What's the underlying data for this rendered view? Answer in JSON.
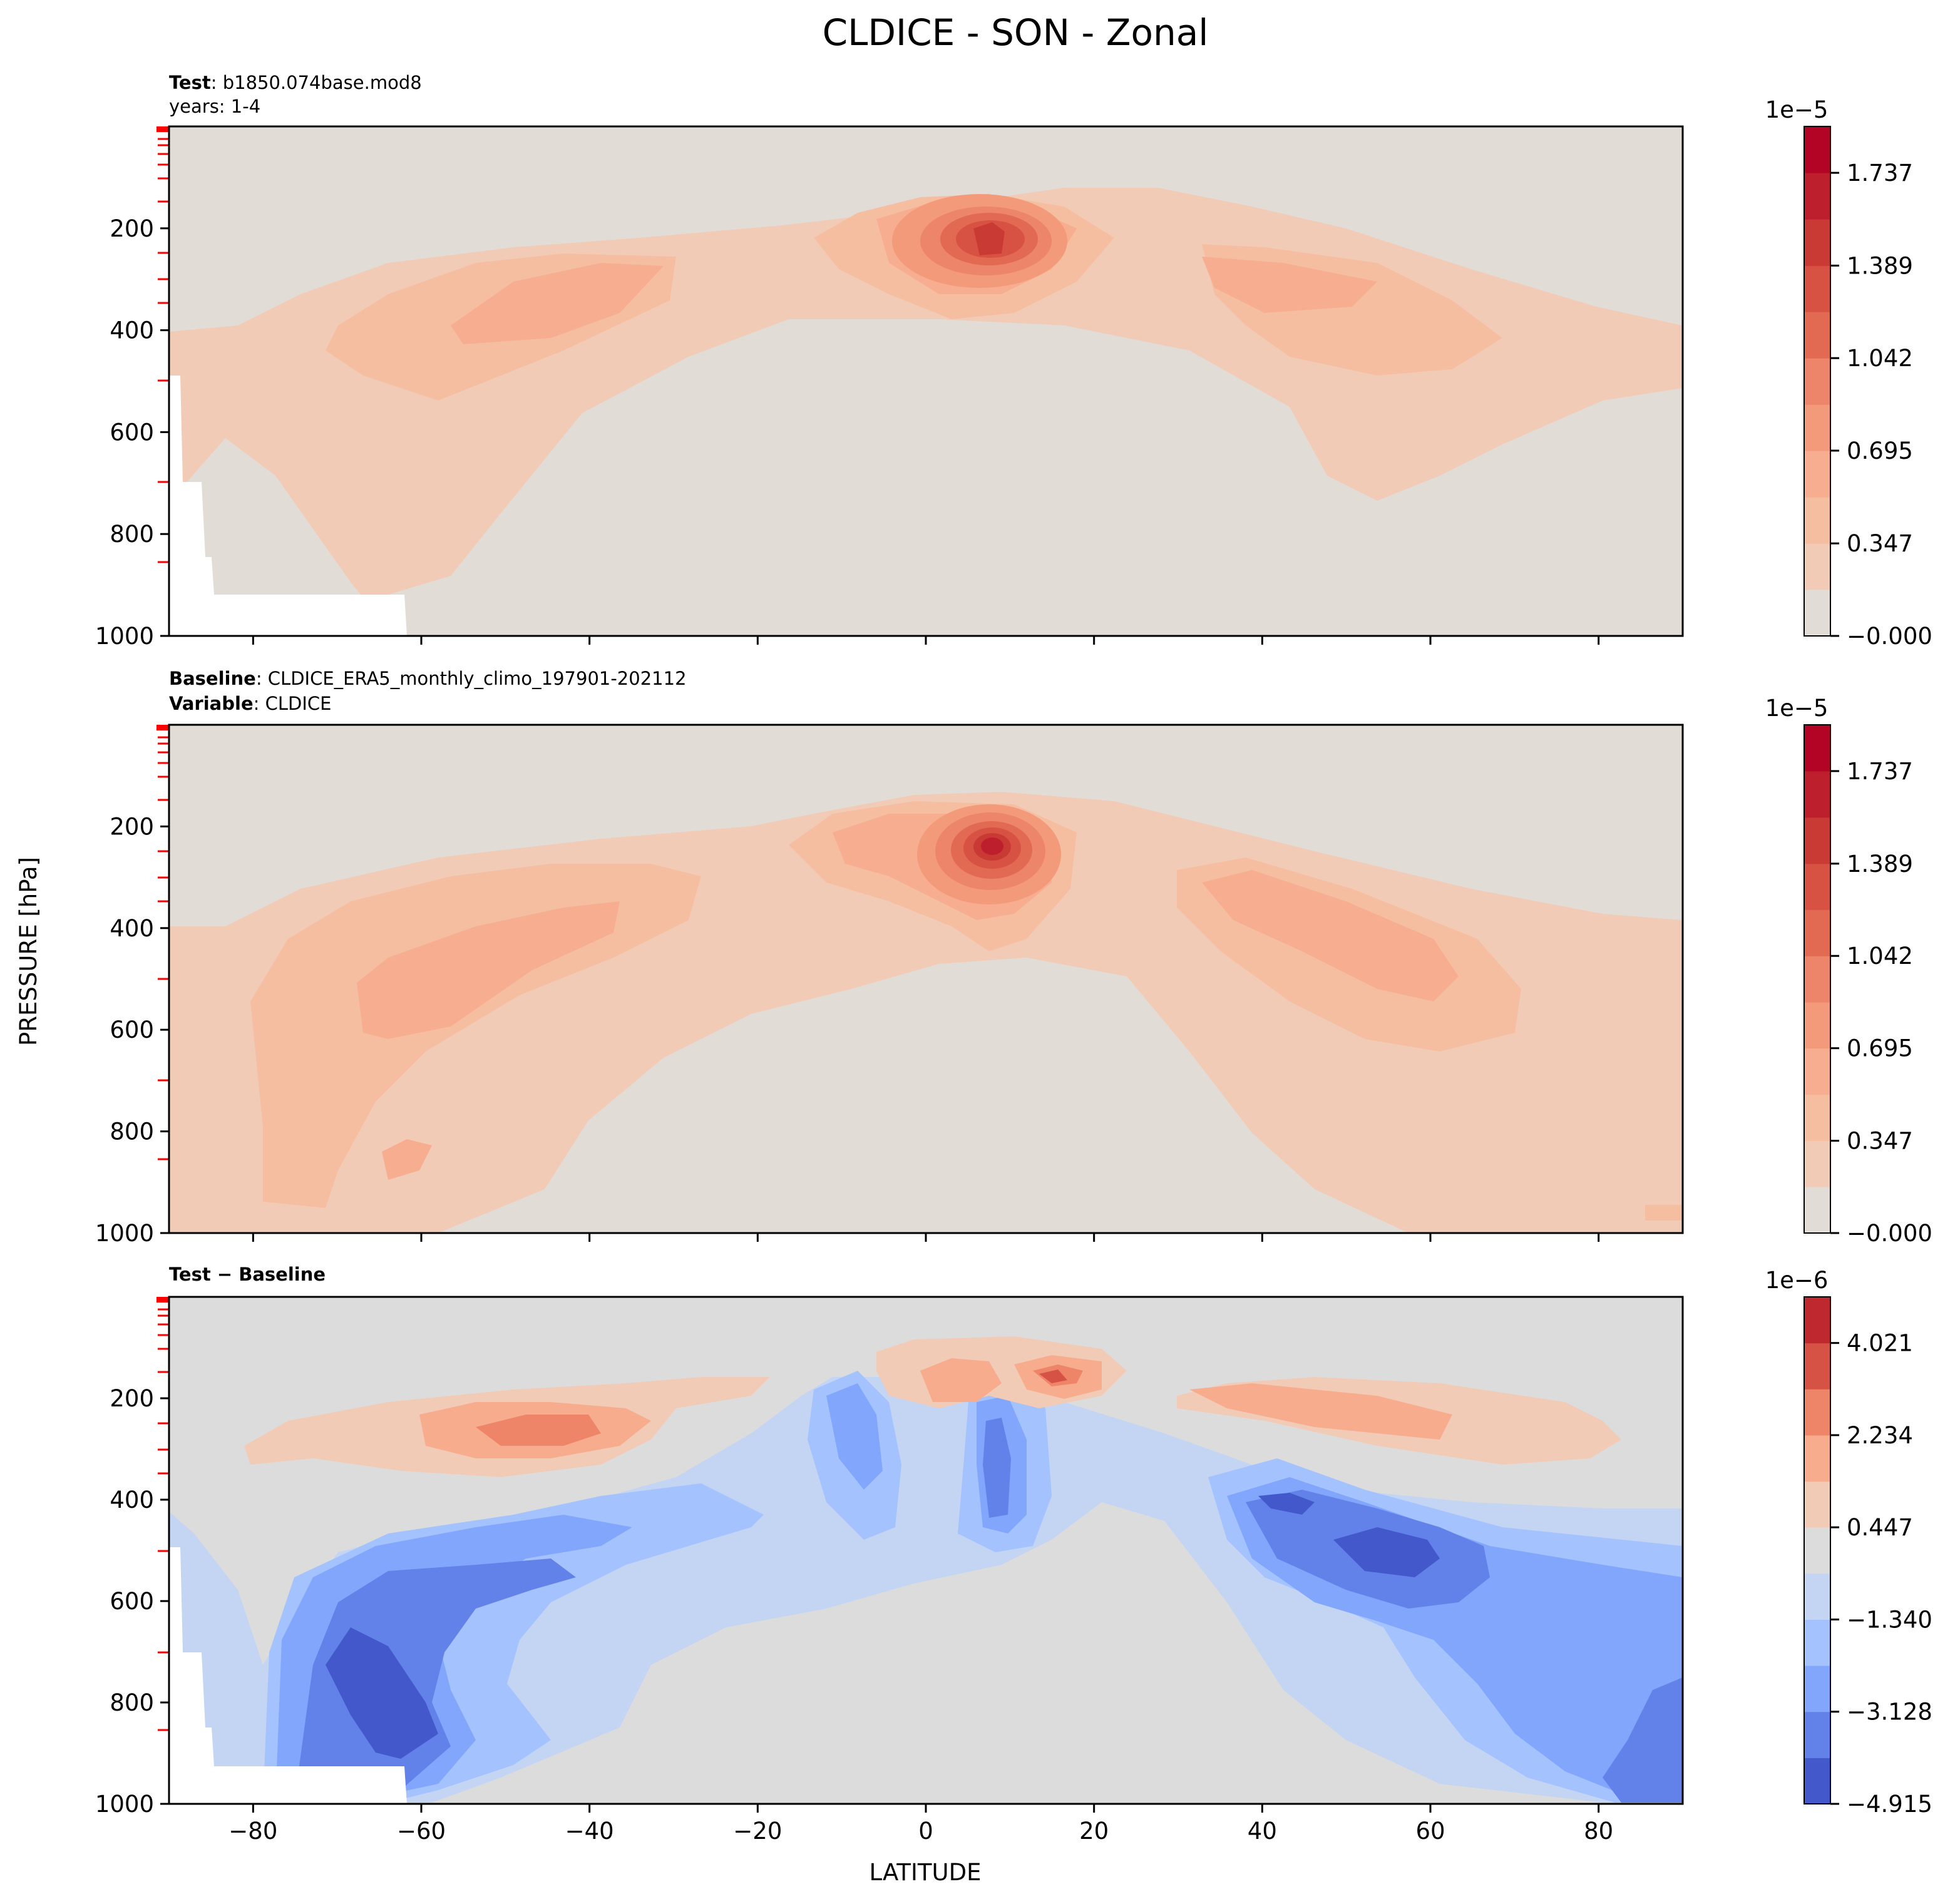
{
  "figure": {
    "title": "CLDICE - SON - Zonal",
    "ylabel": "PRESSURE [hPa]",
    "xlabel": "LATITUDE"
  },
  "colors": {
    "background": "#e2dcd7",
    "diff_background": "#dcdcdc",
    "pressure_level_tick": "#ff0000",
    "missing": "#ffffff"
  },
  "chart_data": [
    {
      "type": "heatmap",
      "panel": "test",
      "header": [
        {
          "bold": "Test",
          "text": ": b1850.074base.mod8"
        },
        {
          "bold": "",
          "text": "years: 1-4"
        }
      ],
      "xlim": [
        -90,
        90
      ],
      "ylim": [
        1000,
        0
      ],
      "x_ticks": [
        -80,
        -60,
        -40,
        -20,
        0,
        20,
        40,
        60,
        80
      ],
      "x_tick_labels_visible": false,
      "y_ticks": [
        200,
        400,
        600,
        800,
        1000
      ],
      "y_tick_labels": [
        "200",
        "400",
        "600",
        "800",
        "1000"
      ],
      "colorbar": {
        "exponent_label": "1e−5",
        "levels": [
          -0.0,
          0.174,
          0.347,
          0.521,
          0.695,
          0.868,
          1.042,
          1.216,
          1.389,
          1.563,
          1.737,
          1.911
        ],
        "tick_values": [
          -0.0,
          0.347,
          0.695,
          1.042,
          1.389,
          1.737
        ],
        "tick_labels": [
          "−0.000",
          "0.347",
          "0.695",
          "1.042",
          "1.389",
          "1.737"
        ],
        "colors": [
          "#e2dcd7",
          "#f2cbb7",
          "#f6bea1",
          "#f7ad90",
          "#f39a7b",
          "#ec8569",
          "#e26952",
          "#d85243",
          "#c93a34",
          "#bd1f2d",
          "#b40426"
        ]
      },
      "features": [
        {
          "name": "tropical upper-troposphere maximum",
          "lat": 8,
          "pressure_hPa": 230,
          "value_1e-5": 1.6
        },
        {
          "name": "southern mid-latitude band",
          "lat": -42,
          "pressure_hPa": 330,
          "value_1e-5": 0.6
        },
        {
          "name": "northern mid-latitude band",
          "lat": 45,
          "pressure_hPa": 310,
          "value_1e-5": 0.6
        }
      ]
    },
    {
      "type": "heatmap",
      "panel": "baseline",
      "header": [
        {
          "bold": "Baseline",
          "text": ": CLDICE_ERA5_monthly_climo_197901-202112"
        },
        {
          "bold": "Variable",
          "text": ": CLDICE"
        }
      ],
      "xlim": [
        -90,
        90
      ],
      "ylim": [
        1000,
        0
      ],
      "x_ticks": [
        -80,
        -60,
        -40,
        -20,
        0,
        20,
        40,
        60,
        80
      ],
      "x_tick_labels_visible": false,
      "y_ticks": [
        200,
        400,
        600,
        800,
        1000
      ],
      "y_tick_labels": [
        "200",
        "400",
        "600",
        "800",
        "1000"
      ],
      "colorbar": {
        "exponent_label": "1e−5",
        "levels": [
          -0.0,
          0.174,
          0.347,
          0.521,
          0.695,
          0.868,
          1.042,
          1.216,
          1.389,
          1.563,
          1.737,
          1.911
        ],
        "tick_values": [
          -0.0,
          0.347,
          0.695,
          1.042,
          1.389,
          1.737
        ],
        "tick_labels": [
          "−0.000",
          "0.347",
          "0.695",
          "1.042",
          "1.389",
          "1.737"
        ],
        "colors": [
          "#e2dcd7",
          "#f2cbb7",
          "#f6bea1",
          "#f7ad90",
          "#f39a7b",
          "#ec8569",
          "#e26952",
          "#d85243",
          "#c93a34",
          "#bd1f2d",
          "#b40426"
        ]
      },
      "features": [
        {
          "name": "tropical upper-troposphere maximum",
          "lat": 8,
          "pressure_hPa": 240,
          "value_1e-5": 1.9
        },
        {
          "name": "southern mid-latitude band",
          "lat": -55,
          "pressure_hPa": 560,
          "value_1e-5": 0.75
        },
        {
          "name": "northern mid-latitude band",
          "lat": 50,
          "pressure_hPa": 450,
          "value_1e-5": 0.75
        }
      ]
    },
    {
      "type": "heatmap",
      "panel": "difference",
      "header": [
        {
          "bold": "Test − Baseline",
          "text": ""
        }
      ],
      "xlim": [
        -90,
        90
      ],
      "ylim": [
        1000,
        0
      ],
      "x_ticks": [
        -80,
        -60,
        -40,
        -20,
        0,
        20,
        40,
        60,
        80
      ],
      "x_tick_labels": [
        "−80",
        "−60",
        "−40",
        "−20",
        "0",
        "20",
        "40",
        "60",
        "80"
      ],
      "x_tick_labels_visible": true,
      "y_ticks": [
        200,
        400,
        600,
        800,
        1000
      ],
      "y_tick_labels": [
        "200",
        "400",
        "600",
        "800",
        "1000"
      ],
      "colorbar": {
        "exponent_label": "1e−6",
        "levels": [
          -4.915,
          -4.022,
          -3.128,
          -2.234,
          -1.34,
          -0.447,
          0.447,
          1.34,
          2.234,
          3.128,
          4.021,
          4.915
        ],
        "tick_values": [
          -4.915,
          -3.128,
          -1.34,
          0.447,
          2.234,
          4.021
        ],
        "tick_labels": [
          "−4.915",
          "−3.128",
          "−1.340",
          "0.447",
          "2.234",
          "4.021"
        ],
        "colors": [
          "#4358cb",
          "#6282ea",
          "#82a6fb",
          "#a3c2fe",
          "#c4d5f3",
          "#dcdcdc",
          "#f2cbb7",
          "#f7ac8e",
          "#ee8468",
          "#d65244",
          "#c0282f"
        ]
      },
      "features": [
        {
          "name": "tropical upper positive anomaly",
          "lat": 12,
          "pressure_hPa": 170,
          "value_1e-6": 3.0
        },
        {
          "name": "southern lower-troposphere negative anomaly",
          "lat": -65,
          "pressure_hPa": 780,
          "value_1e-6": -4.5
        },
        {
          "name": "northern mid-troposphere negative anomaly",
          "lat": 50,
          "pressure_hPa": 500,
          "value_1e-6": -4.5
        }
      ]
    }
  ]
}
